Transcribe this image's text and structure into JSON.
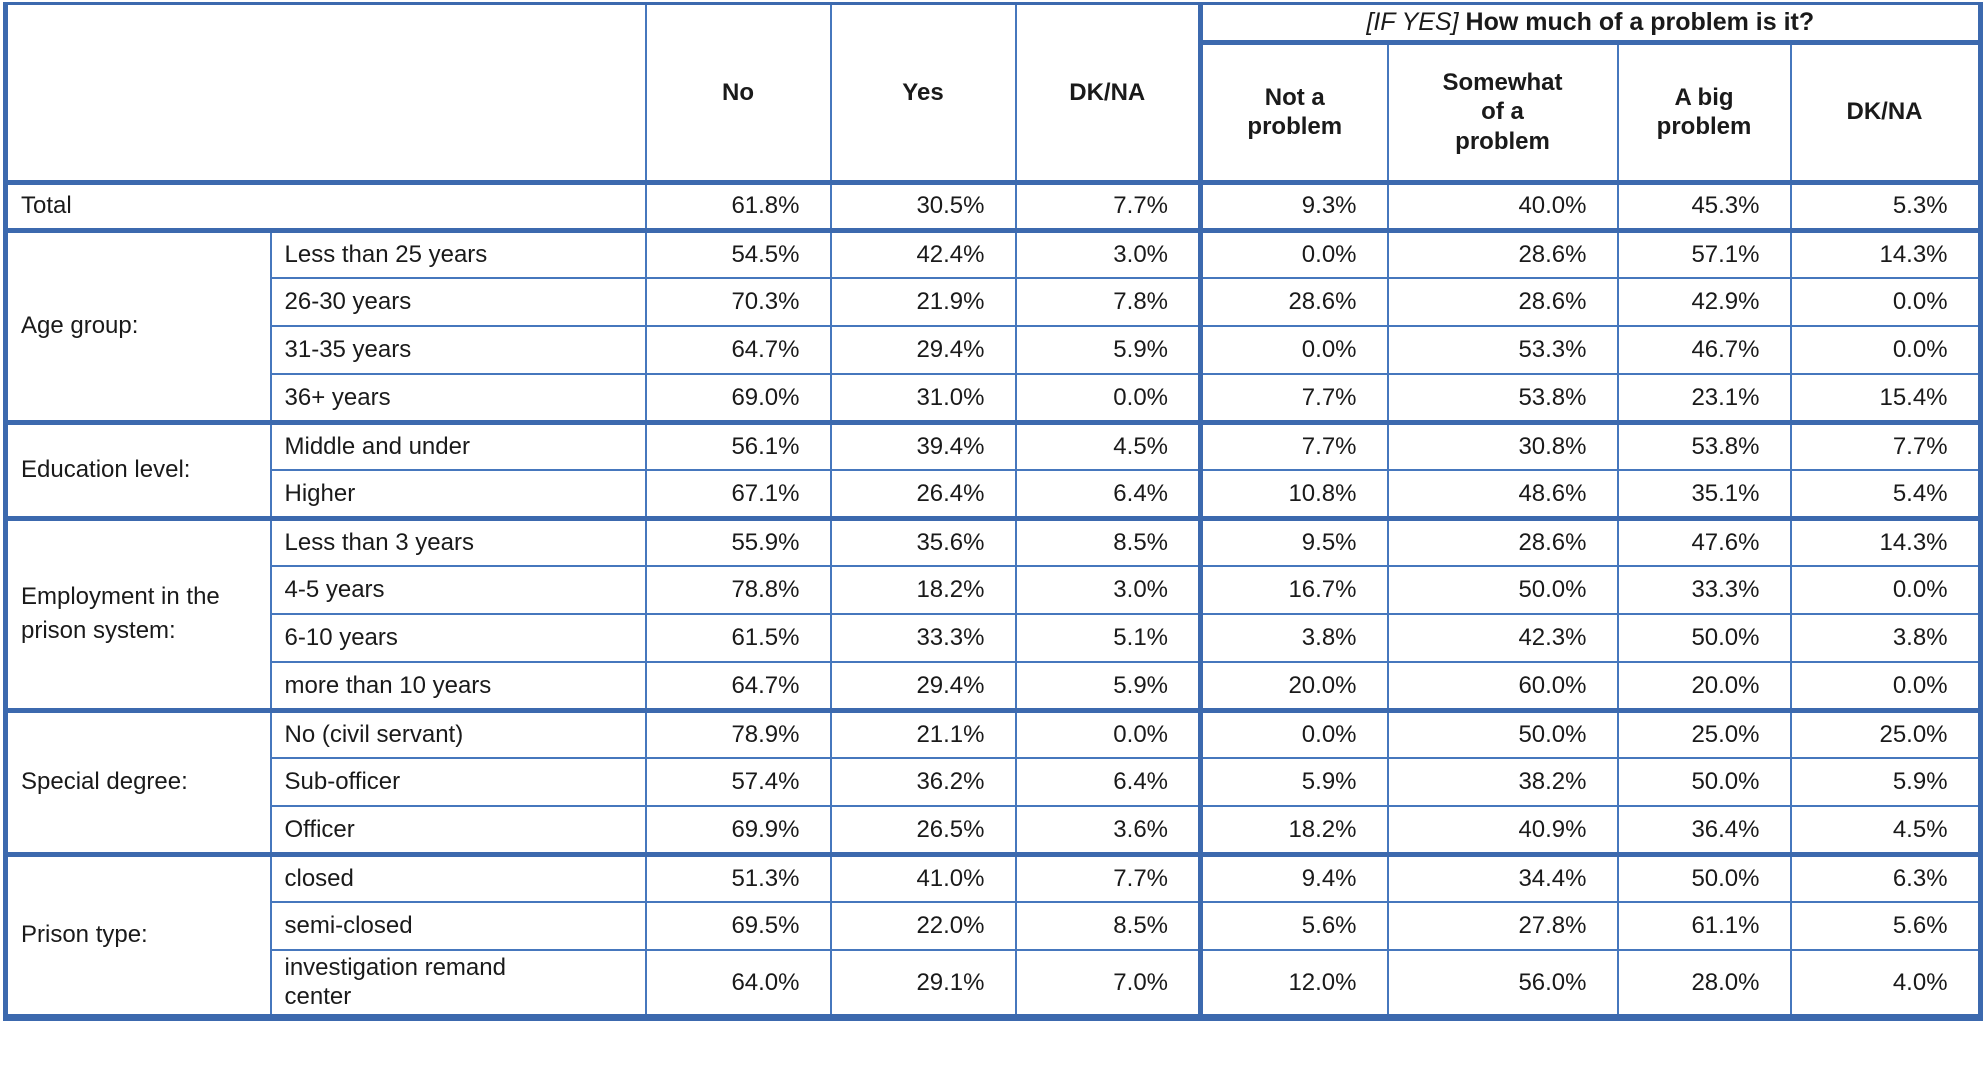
{
  "table": {
    "header": {
      "if_yes_prefix": "[IF YES]",
      "if_yes_question": "How much of a problem is it?",
      "columns": [
        "No",
        "Yes",
        "DK/NA",
        "Not a problem",
        "Somewhat of a problem",
        "A big problem",
        "DK/NA"
      ]
    },
    "total_row": {
      "label": "Total",
      "values": [
        "61.8%",
        "30.5%",
        "7.7%",
        "9.3%",
        "40.0%",
        "45.3%",
        "5.3%"
      ]
    },
    "groups": [
      {
        "label": "Age group:",
        "rows": [
          {
            "label": "Less than 25 years",
            "values": [
              "54.5%",
              "42.4%",
              "3.0%",
              "0.0%",
              "28.6%",
              "57.1%",
              "14.3%"
            ]
          },
          {
            "label": "26-30 years",
            "values": [
              "70.3%",
              "21.9%",
              "7.8%",
              "28.6%",
              "28.6%",
              "42.9%",
              "0.0%"
            ]
          },
          {
            "label": "31-35 years",
            "values": [
              "64.7%",
              "29.4%",
              "5.9%",
              "0.0%",
              "53.3%",
              "46.7%",
              "0.0%"
            ]
          },
          {
            "label": "36+ years",
            "values": [
              "69.0%",
              "31.0%",
              "0.0%",
              "7.7%",
              "53.8%",
              "23.1%",
              "15.4%"
            ]
          }
        ]
      },
      {
        "label": "Education level:",
        "rows": [
          {
            "label": "Middle and under",
            "values": [
              "56.1%",
              "39.4%",
              "4.5%",
              "7.7%",
              "30.8%",
              "53.8%",
              "7.7%"
            ]
          },
          {
            "label": "Higher",
            "values": [
              "67.1%",
              "26.4%",
              "6.4%",
              "10.8%",
              "48.6%",
              "35.1%",
              "5.4%"
            ]
          }
        ]
      },
      {
        "label": "Employment in the prison system:",
        "rows": [
          {
            "label": "Less than 3 years",
            "values": [
              "55.9%",
              "35.6%",
              "8.5%",
              "9.5%",
              "28.6%",
              "47.6%",
              "14.3%"
            ]
          },
          {
            "label": "4-5 years",
            "values": [
              "78.8%",
              "18.2%",
              "3.0%",
              "16.7%",
              "50.0%",
              "33.3%",
              "0.0%"
            ]
          },
          {
            "label": "6-10 years",
            "values": [
              "61.5%",
              "33.3%",
              "5.1%",
              "3.8%",
              "42.3%",
              "50.0%",
              "3.8%"
            ]
          },
          {
            "label": "more than 10 years",
            "values": [
              "64.7%",
              "29.4%",
              "5.9%",
              "20.0%",
              "60.0%",
              "20.0%",
              "0.0%"
            ]
          }
        ]
      },
      {
        "label": "Special degree:",
        "rows": [
          {
            "label": "No (civil servant)",
            "values": [
              "78.9%",
              "21.1%",
              "0.0%",
              "0.0%",
              "50.0%",
              "25.0%",
              "25.0%"
            ]
          },
          {
            "label": "Sub-officer",
            "values": [
              "57.4%",
              "36.2%",
              "6.4%",
              "5.9%",
              "38.2%",
              "50.0%",
              "5.9%"
            ]
          },
          {
            "label": "Officer",
            "values": [
              "69.9%",
              "26.5%",
              "3.6%",
              "18.2%",
              "40.9%",
              "36.4%",
              "4.5%"
            ]
          }
        ]
      },
      {
        "label": "Prison type:",
        "rows": [
          {
            "label": "closed",
            "values": [
              "51.3%",
              "41.0%",
              "7.7%",
              "9.4%",
              "34.4%",
              "50.0%",
              "6.3%"
            ]
          },
          {
            "label": "semi-closed",
            "values": [
              "69.5%",
              "22.0%",
              "8.5%",
              "5.6%",
              "27.8%",
              "61.1%",
              "5.6%"
            ]
          },
          {
            "label": "investigation remand center",
            "values": [
              "64.0%",
              "29.1%",
              "7.0%",
              "12.0%",
              "56.0%",
              "28.0%",
              "4.0%"
            ]
          }
        ]
      }
    ],
    "colors": {
      "border_blue": "#4677bd",
      "border_blue_thick": "#3c69ae",
      "text": "#1a1a1a",
      "background": "#ffffff"
    }
  }
}
